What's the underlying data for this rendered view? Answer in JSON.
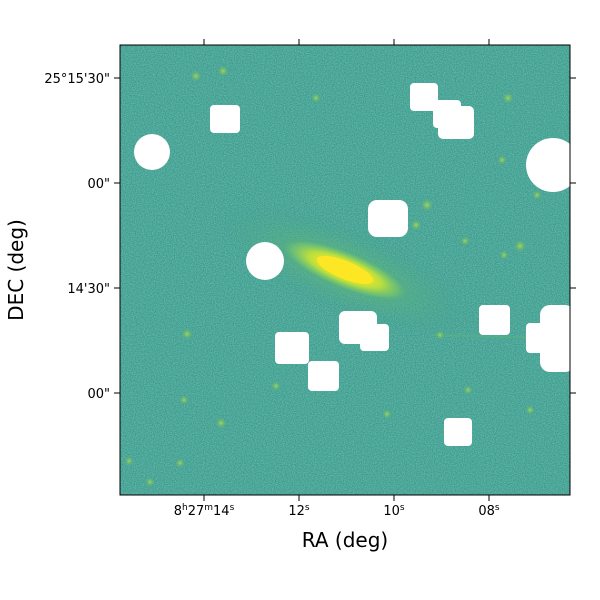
{
  "image_type": "astronomical sky image with masked stars",
  "colormap": [
    "#3d9a8b",
    "#2f8f8a",
    "#48a98a",
    "#5cb97f",
    "#8fd45e",
    "#d2e13a",
    "#fde725"
  ],
  "mask_color": "#ffffff",
  "chart_data": {
    "type": "heatmap",
    "xlabel": "RA (deg)",
    "ylabel": "DEC (deg)",
    "x_tick_labels": [
      "8h27m14s",
      "12s",
      "10s",
      "08s"
    ],
    "x_tick_parts": [
      {
        "h": "8",
        "hu": "h",
        "m": "27",
        "mu": "m",
        "s": "14",
        "su": "s"
      },
      {
        "s": "12",
        "su": "s"
      },
      {
        "s": "10",
        "su": "s"
      },
      {
        "s": "08",
        "su": "s"
      }
    ],
    "y_tick_labels": [
      "25°15'30\"",
      "00\"",
      "14'30\"",
      "00\""
    ],
    "grid": false
  }
}
